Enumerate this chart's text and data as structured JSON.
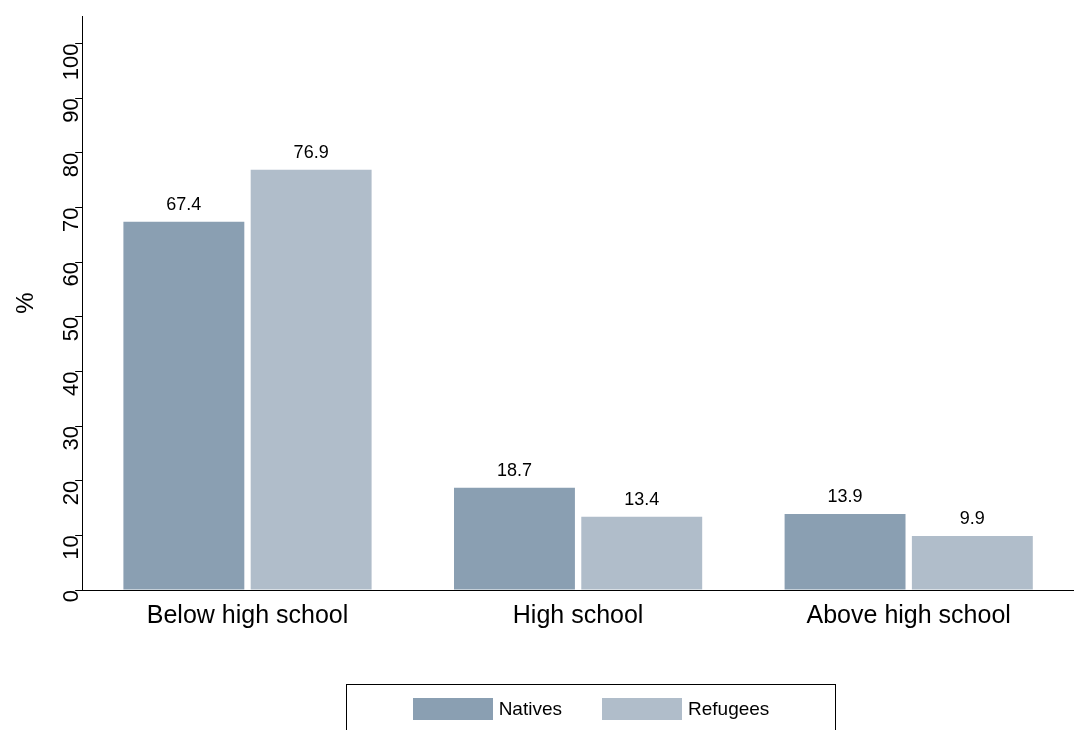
{
  "chart_data": {
    "type": "bar",
    "ylabel": "%",
    "categories": [
      "Below high school",
      "High school",
      "Above high school"
    ],
    "series": [
      {
        "name": "Natives",
        "color": "#8a9fb2",
        "values": [
          67.4,
          18.7,
          13.9
        ]
      },
      {
        "name": "Refugees",
        "color": "#b0bdca",
        "values": [
          76.9,
          13.4,
          9.9
        ]
      }
    ],
    "ylim": [
      0,
      105
    ],
    "yticks": [
      0,
      10,
      20,
      30,
      40,
      50,
      60,
      70,
      80,
      90,
      100
    ],
    "grid": false,
    "legend": "bottom",
    "data_labels": true
  }
}
